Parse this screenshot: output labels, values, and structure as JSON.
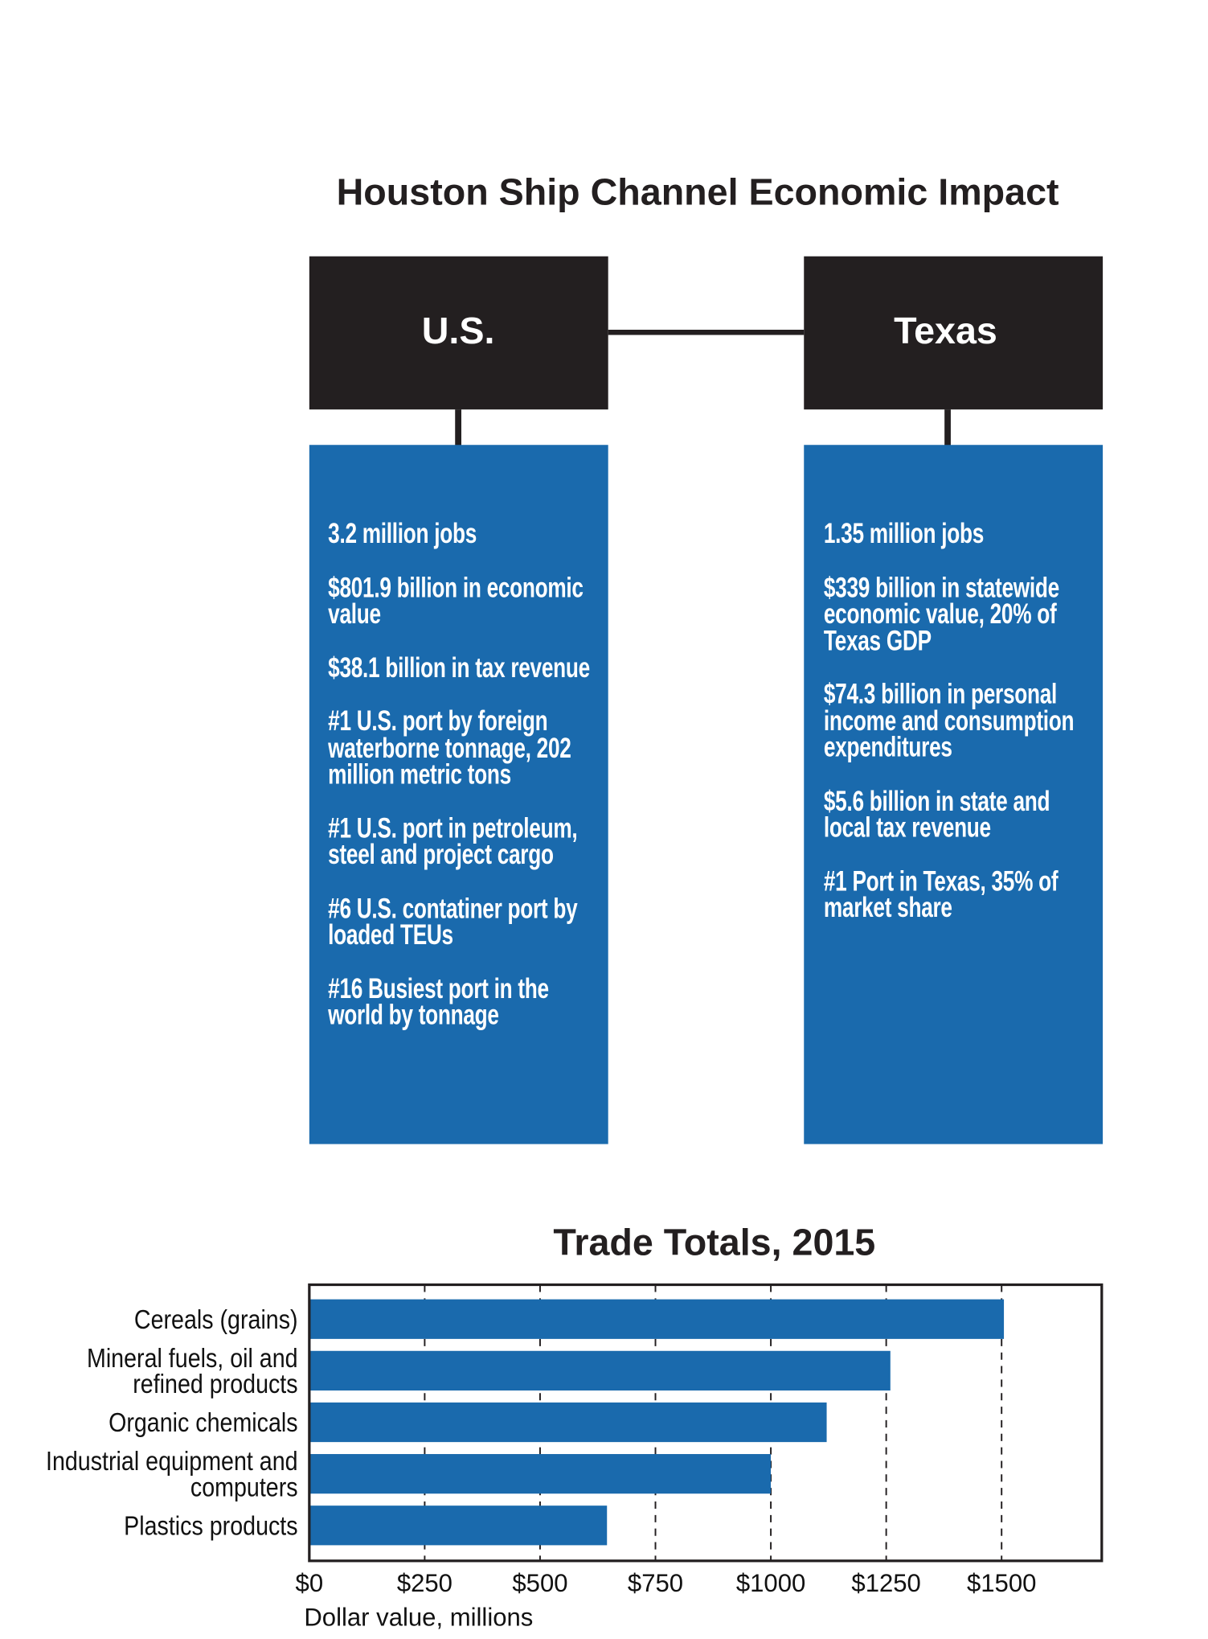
{
  "diagram": {
    "title": "Houston Ship Channel Economic Impact",
    "columns": [
      {
        "heading": "U.S.",
        "items": [
          "3.2 million jobs",
          "$801.9 billion in economic value",
          "$38.1 billion in tax revenue",
          "#1 U.S. port by foreign waterborne tonnage, 202 million metric tons",
          "#1 U.S. port in petroleum, steel and project cargo",
          "#6 U.S. contatiner port by loaded TEUs",
          "#16 Busiest port in the world by tonnage"
        ]
      },
      {
        "heading": "Texas",
        "items": [
          "1.35 million jobs",
          "$339 billion in statewide economic value, 20% of Texas GDP",
          "$74.3 billion in personal income and consumption expenditures",
          "$5.6 billion in state and local tax revenue",
          "#1 Port in Texas, 35% of market share"
        ]
      }
    ]
  },
  "chart_data": {
    "type": "barh",
    "title": "Trade Totals, 2015",
    "x_label": "Dollar value, millions",
    "categories": [
      "Cereals (grains)",
      "Mineral fuels, oil and refined products",
      "Organic chemicals",
      "Industrial equipment and computers",
      "Plastics products"
    ],
    "values": [
      1505,
      1259,
      1121,
      1000,
      645
    ],
    "color": "#1a6aad",
    "xlim": [
      0,
      1717
    ],
    "xticks": [
      {
        "value": 0,
        "label": "$0"
      },
      {
        "value": 250,
        "label": "$250"
      },
      {
        "value": 500,
        "label": "$500"
      },
      {
        "value": 750,
        "label": "$750"
      },
      {
        "value": 1000,
        "label": "$1000"
      },
      {
        "value": 1250,
        "label": "$1250"
      },
      {
        "value": 1500,
        "label": "$1500"
      }
    ],
    "grid": true
  }
}
